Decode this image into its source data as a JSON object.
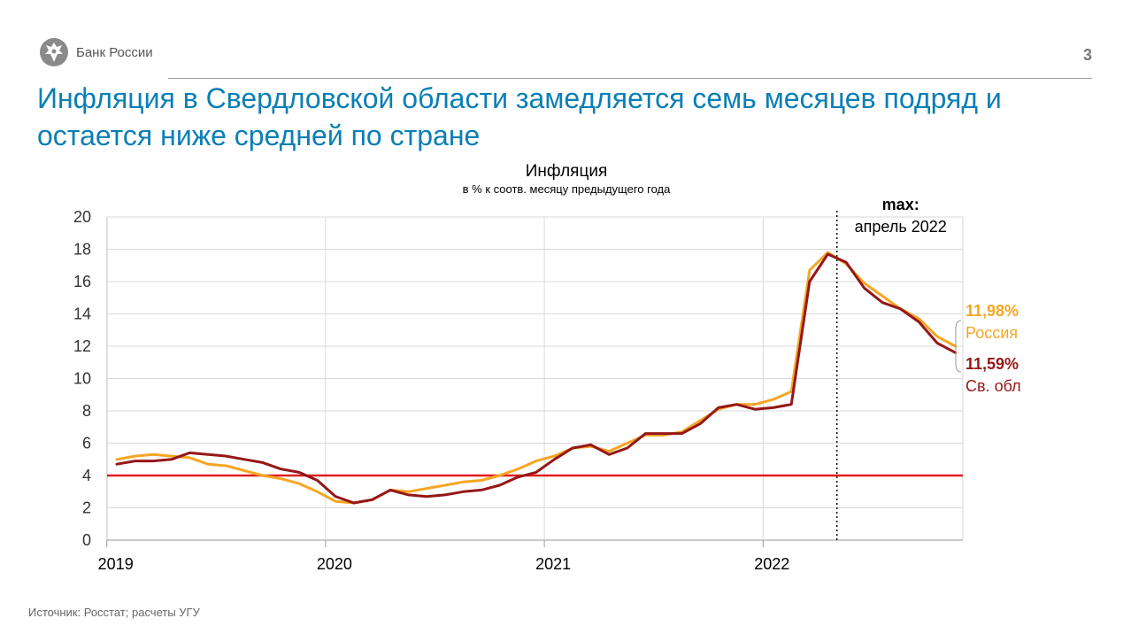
{
  "header": {
    "bank_name": "Банк России",
    "page_number": "3",
    "headline": "Инфляция в Свердловской области замедляется семь месяцев подряд и остается ниже средней по стране",
    "logo_icon": "eagle-emblem-icon"
  },
  "footer": {
    "source": "Источник: Росстат; расчеты УГУ"
  },
  "chart_data": {
    "type": "line",
    "title": "Инфляция",
    "subtitle": "в % к соотв. месяцу предыдущего года",
    "ylim": [
      0,
      20
    ],
    "y_ticks": [
      "0",
      "2",
      "4",
      "6",
      "8",
      "10",
      "12",
      "14",
      "16",
      "18",
      "20"
    ],
    "x_tick_labels": [
      "2019",
      "2020",
      "2021",
      "2022"
    ],
    "grid": true,
    "months": 47,
    "target_line": {
      "value": 4,
      "color": "#e01e1e"
    },
    "max_marker": {
      "index": 39,
      "label_bold": "max:",
      "label": "апрель 2022"
    },
    "series": [
      {
        "name": "Россия",
        "color": "#f5a623",
        "last_value_label": "11,98%",
        "values": [
          5.0,
          5.2,
          5.3,
          5.2,
          5.1,
          4.7,
          4.6,
          4.3,
          4.0,
          3.8,
          3.5,
          3.0,
          2.4,
          2.3,
          2.5,
          3.1,
          3.0,
          3.2,
          3.4,
          3.6,
          3.7,
          4.0,
          4.4,
          4.9,
          5.2,
          5.7,
          5.8,
          5.5,
          6.0,
          6.5,
          6.5,
          6.7,
          7.4,
          8.1,
          8.4,
          8.4,
          8.7,
          9.2,
          16.7,
          17.8,
          17.1,
          15.9,
          15.1,
          14.3,
          13.7,
          12.6,
          12.0
        ]
      },
      {
        "name": "Св. обл",
        "color": "#951717",
        "last_value_label": "11,59%",
        "values": [
          4.7,
          4.9,
          4.9,
          5.0,
          5.4,
          5.3,
          5.2,
          5.0,
          4.8,
          4.4,
          4.2,
          3.7,
          2.7,
          2.3,
          2.5,
          3.1,
          2.8,
          2.7,
          2.8,
          3.0,
          3.1,
          3.4,
          3.9,
          4.2,
          5.0,
          5.7,
          5.9,
          5.3,
          5.7,
          6.6,
          6.6,
          6.6,
          7.2,
          8.2,
          8.4,
          8.1,
          8.2,
          8.4,
          16.0,
          17.7,
          17.2,
          15.6,
          14.7,
          14.3,
          13.5,
          12.2,
          11.6
        ]
      }
    ]
  }
}
